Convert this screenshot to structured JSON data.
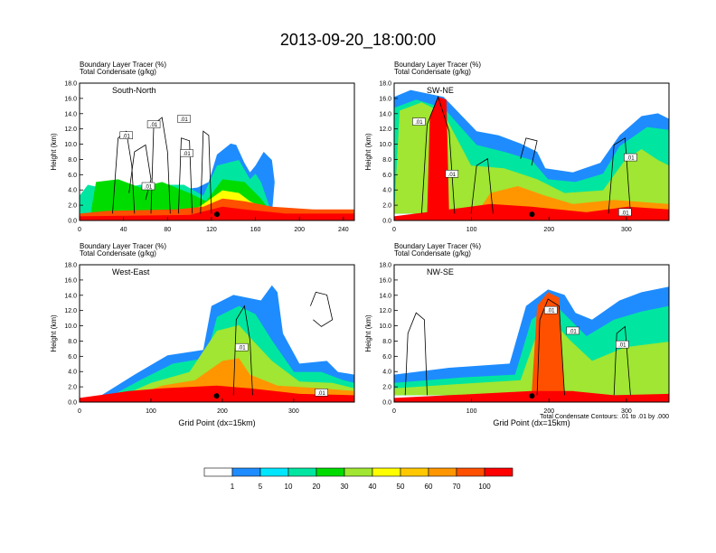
{
  "figure": {
    "title": "2013-09-20_18:00:00",
    "note": "Total Condensate Contours: .01 to .01 by .000"
  },
  "colorbar": {
    "colors": [
      "#ffffff",
      "#1e8cff",
      "#00e6ff",
      "#00e6a0",
      "#00dc00",
      "#a0e632",
      "#ffff00",
      "#ffc800",
      "#ff9600",
      "#ff5000",
      "#ff0000"
    ],
    "labels": [
      "1",
      "5",
      "10",
      "20",
      "30",
      "40",
      "50",
      "60",
      "70",
      "100"
    ]
  },
  "chart_data": [
    {
      "type": "heatmap",
      "panel_label": "South-North",
      "fill_title": "Boundary Layer Tracer   (%)",
      "contour_title": "Total Condensate   (g/kg)",
      "xlabel": "",
      "ylabel": "Height (km)",
      "xlim": [
        0,
        250
      ],
      "ylim": [
        0,
        18
      ],
      "xticks": [
        0,
        40,
        80,
        120,
        160,
        200,
        240
      ],
      "yticks": [
        "0.0",
        "2.0",
        "4.0",
        "6.0",
        "8.0",
        "10.0",
        "12.0",
        "14.0",
        "16.0",
        "18.0"
      ],
      "contour_labels": [
        ".01",
        ".01",
        ".01",
        ".01",
        ".01"
      ],
      "marker_x": 125
    },
    {
      "type": "heatmap",
      "panel_label": "SW-NE",
      "fill_title": "Boundary Layer Tracer   (%)",
      "contour_title": "Total Condensate   (g/kg)",
      "xlabel": "",
      "ylabel": "Height (km)",
      "xlim": [
        0,
        355
      ],
      "ylim": [
        0,
        18
      ],
      "xticks": [
        0,
        100,
        200,
        300
      ],
      "yticks": [
        "0.0",
        "2.0",
        "4.0",
        "6.0",
        "8.0",
        "10.0",
        "12.0",
        "14.0",
        "16.0",
        "18.0"
      ],
      "contour_labels": [
        ".01",
        ".01",
        ".01",
        ".01"
      ],
      "marker_x": 178
    },
    {
      "type": "heatmap",
      "panel_label": "West-East",
      "fill_title": "Boundary Layer Tracer   (%)",
      "contour_title": "Total Condensate   (g/kg)",
      "xlabel": "Grid Point (dx=15km)",
      "ylabel": "Height (km)",
      "xlim": [
        0,
        385
      ],
      "ylim": [
        0,
        18
      ],
      "xticks": [
        0,
        100,
        200,
        300
      ],
      "yticks": [
        "0.0",
        "2.0",
        "4.0",
        "6.0",
        "8.0",
        "10.0",
        "12.0",
        "14.0",
        "16.0",
        "18.0"
      ],
      "contour_labels": [
        ".01",
        ".01"
      ],
      "marker_x": 192
    },
    {
      "type": "heatmap",
      "panel_label": "NW-SE",
      "fill_title": "Boundary Layer Tracer   (%)",
      "contour_title": "Total Condensate   (g/kg)",
      "xlabel": "Grid Point (dx=15km)",
      "ylabel": "Height (km)",
      "xlim": [
        0,
        355
      ],
      "ylim": [
        0,
        18
      ],
      "xticks": [
        0,
        100,
        200,
        300
      ],
      "yticks": [
        "0.0",
        "2.0",
        "4.0",
        "6.0",
        "8.0",
        "10.0",
        "12.0",
        "14.0",
        "16.0",
        "18.0"
      ],
      "contour_labels": [
        ".01",
        ".01",
        ".01"
      ],
      "marker_x": 178
    }
  ]
}
